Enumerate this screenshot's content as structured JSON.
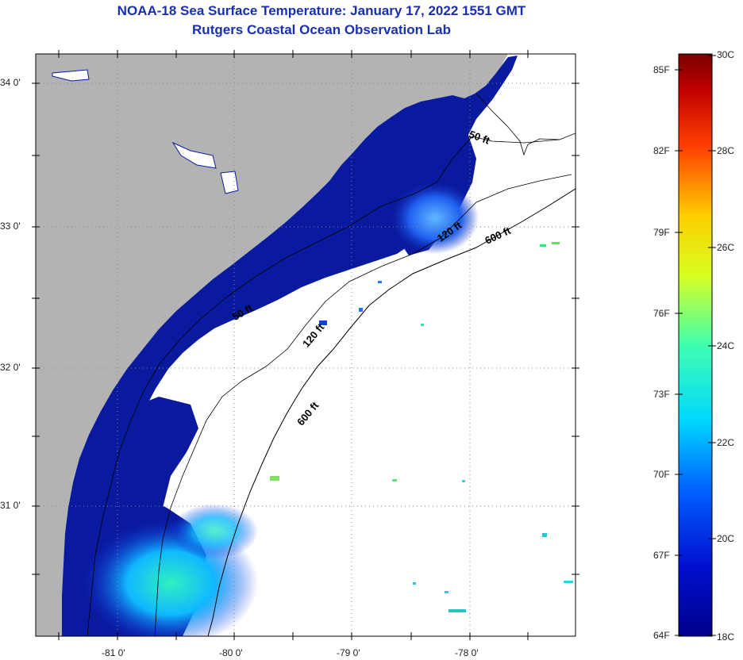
{
  "title_line1": "NOAA-18 Sea Surface Temperature:  January 17, 2022 1551 GMT",
  "title_line2": "Rutgers Coastal Ocean Observation Lab",
  "map": {
    "lat_labels": [
      "34 0'",
      "33 0'",
      "32 0'",
      "31 0'"
    ],
    "lon_labels": [
      "-81 0'",
      "-80 0'",
      "-79 0'",
      "-78 0'"
    ],
    "isobaths": [
      "50 ft",
      "120 ft",
      "600 ft",
      "50 ft",
      "120 ft",
      "600 ft"
    ]
  },
  "colorbar": {
    "f_labels": [
      "85F",
      "82F",
      "79F",
      "76F",
      "73F",
      "70F",
      "67F",
      "64F"
    ],
    "c_labels": [
      "30C",
      "28C",
      "26C",
      "24C",
      "22C",
      "20C",
      "18C"
    ]
  },
  "colors": {
    "land": "#b3b3b3",
    "deep_blue": "#0a1a9e",
    "title": "#1a2fb0"
  }
}
